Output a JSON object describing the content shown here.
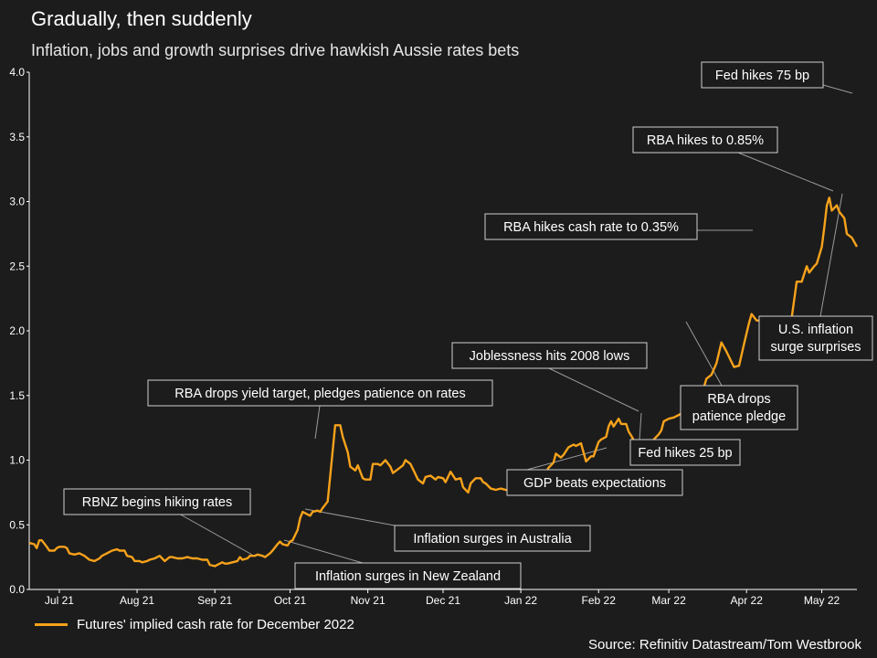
{
  "header": {
    "title": "Gradually, then suddenly",
    "subtitle": "Inflation, jobs and growth surprises drive hawkish Aussie rates bets"
  },
  "legend": {
    "label": "Futures' implied cash rate for December 2022"
  },
  "source": "Source: Refinitiv Datastream/Tom Westbrook",
  "colors": {
    "series": "#f7a21b",
    "background": "#1c1c1c",
    "axis": "#ffffff",
    "annotation_line": "#9a9a9a"
  },
  "chart_data": {
    "type": "line",
    "title": "Gradually, then suddenly",
    "subtitle": "Inflation, jobs and growth surprises drive hawkish Aussie rates bets",
    "ylim": [
      0,
      4.0
    ],
    "yticks": [
      "0.0",
      "0.5",
      "1.0",
      "1.5",
      "2.0",
      "2.5",
      "3.0",
      "3.5",
      "4.0"
    ],
    "xlim": [
      0,
      330
    ],
    "x_unit": "days from 2021-06-21",
    "xticks": [
      {
        "label": "Jul 21",
        "x": 12
      },
      {
        "label": "Aug 21",
        "x": 43
      },
      {
        "label": "Sep 21",
        "x": 74
      },
      {
        "label": "Oct 21",
        "x": 104
      },
      {
        "label": "Nov 21",
        "x": 135
      },
      {
        "label": "Dec 21",
        "x": 165
      },
      {
        "label": "Jan 22",
        "x": 196
      },
      {
        "label": "Feb 22",
        "x": 227
      },
      {
        "label": "Mar 22",
        "x": 255
      },
      {
        "label": "Apr 22",
        "x": 286
      },
      {
        "label": "May 22",
        "x": 316
      }
    ],
    "series": [
      {
        "name": "Futures' implied cash rate for December 2022",
        "points": [
          [
            0,
            0.36
          ],
          [
            2,
            0.35
          ],
          [
            3,
            0.32
          ],
          [
            4,
            0.38
          ],
          [
            5,
            0.38
          ],
          [
            7,
            0.33
          ],
          [
            8,
            0.3
          ],
          [
            10,
            0.3
          ],
          [
            11,
            0.32
          ],
          [
            12,
            0.33
          ],
          [
            14,
            0.33
          ],
          [
            15,
            0.32
          ],
          [
            16,
            0.28
          ],
          [
            18,
            0.27
          ],
          [
            20,
            0.28
          ],
          [
            21,
            0.27
          ],
          [
            22,
            0.26
          ],
          [
            24,
            0.23
          ],
          [
            26,
            0.22
          ],
          [
            28,
            0.24
          ],
          [
            29,
            0.26
          ],
          [
            30,
            0.27
          ],
          [
            32,
            0.29
          ],
          [
            33,
            0.3
          ],
          [
            35,
            0.31
          ],
          [
            36,
            0.3
          ],
          [
            38,
            0.3
          ],
          [
            39,
            0.26
          ],
          [
            41,
            0.25
          ],
          [
            42,
            0.22
          ],
          [
            44,
            0.22
          ],
          [
            45,
            0.21
          ],
          [
            47,
            0.22
          ],
          [
            48,
            0.23
          ],
          [
            50,
            0.24
          ],
          [
            52,
            0.26
          ],
          [
            53,
            0.24
          ],
          [
            54,
            0.22
          ],
          [
            56,
            0.25
          ],
          [
            57,
            0.25
          ],
          [
            59,
            0.24
          ],
          [
            61,
            0.24
          ],
          [
            63,
            0.25
          ],
          [
            65,
            0.24
          ],
          [
            67,
            0.24
          ],
          [
            69,
            0.23
          ],
          [
            71,
            0.23
          ],
          [
            72,
            0.19
          ],
          [
            74,
            0.18
          ],
          [
            75,
            0.19
          ],
          [
            77,
            0.21
          ],
          [
            78,
            0.2
          ],
          [
            79,
            0.2
          ],
          [
            81,
            0.21
          ],
          [
            83,
            0.22
          ],
          [
            84,
            0.25
          ],
          [
            85,
            0.23
          ],
          [
            87,
            0.24
          ],
          [
            88,
            0.26
          ],
          [
            90,
            0.26
          ],
          [
            91,
            0.27
          ],
          [
            93,
            0.26
          ],
          [
            94,
            0.25
          ],
          [
            96,
            0.28
          ],
          [
            97,
            0.3
          ],
          [
            99,
            0.35
          ],
          [
            100,
            0.37
          ],
          [
            101,
            0.35
          ],
          [
            103,
            0.34
          ],
          [
            104,
            0.37
          ],
          [
            105,
            0.38
          ],
          [
            107,
            0.46
          ],
          [
            108,
            0.55
          ],
          [
            109,
            0.6
          ],
          [
            111,
            0.58
          ],
          [
            112,
            0.57
          ],
          [
            113,
            0.6
          ],
          [
            115,
            0.61
          ],
          [
            116,
            0.6
          ],
          [
            117,
            0.63
          ],
          [
            119,
            0.68
          ],
          [
            120,
            0.88
          ],
          [
            122,
            1.27
          ],
          [
            124,
            1.27
          ],
          [
            125,
            1.18
          ],
          [
            127,
            1.06
          ],
          [
            128,
            0.95
          ],
          [
            130,
            0.92
          ],
          [
            131,
            0.96
          ],
          [
            133,
            0.86
          ],
          [
            134,
            0.85
          ],
          [
            136,
            0.85
          ],
          [
            137,
            0.97
          ],
          [
            139,
            0.97
          ],
          [
            140,
            0.96
          ],
          [
            142,
            1.0
          ],
          [
            144,
            0.95
          ],
          [
            145,
            0.9
          ],
          [
            147,
            0.93
          ],
          [
            149,
            0.96
          ],
          [
            150,
            1.0
          ],
          [
            152,
            0.97
          ],
          [
            153,
            0.93
          ],
          [
            155,
            0.85
          ],
          [
            157,
            0.82
          ],
          [
            158,
            0.87
          ],
          [
            160,
            0.88
          ],
          [
            162,
            0.85
          ],
          [
            163,
            0.87
          ],
          [
            165,
            0.86
          ],
          [
            166,
            0.83
          ],
          [
            168,
            0.91
          ],
          [
            170,
            0.85
          ],
          [
            172,
            0.86
          ],
          [
            173,
            0.79
          ],
          [
            175,
            0.75
          ],
          [
            176,
            0.82
          ],
          [
            178,
            0.86
          ],
          [
            180,
            0.86
          ],
          [
            181,
            0.83
          ],
          [
            182,
            0.82
          ],
          [
            184,
            0.78
          ],
          [
            186,
            0.77
          ],
          [
            188,
            0.78
          ],
          [
            190,
            0.77
          ],
          [
            191,
            0.76
          ],
          [
            193,
            0.81
          ],
          [
            195,
            0.79
          ],
          [
            197,
            0.8
          ],
          [
            198,
            0.8
          ],
          [
            200,
            0.82
          ],
          [
            201,
            0.81
          ],
          [
            203,
            0.86
          ],
          [
            205,
            0.86
          ],
          [
            207,
            0.94
          ],
          [
            209,
            0.98
          ],
          [
            210,
            1.05
          ],
          [
            212,
            1.02
          ],
          [
            213,
            1.04
          ],
          [
            215,
            1.1
          ],
          [
            217,
            1.12
          ],
          [
            218,
            1.11
          ],
          [
            220,
            1.13
          ],
          [
            222,
            0.99
          ],
          [
            224,
            1.03
          ],
          [
            225,
            1.03
          ],
          [
            227,
            1.14
          ],
          [
            228,
            1.16
          ],
          [
            230,
            1.18
          ],
          [
            231,
            1.26
          ],
          [
            232,
            1.3
          ],
          [
            233,
            1.26
          ],
          [
            235,
            1.32
          ],
          [
            236,
            1.28
          ],
          [
            238,
            1.28
          ],
          [
            239,
            1.22
          ],
          [
            240,
            1.19
          ],
          [
            242,
            1.12
          ],
          [
            243,
            1.07
          ],
          [
            245,
            1.03
          ],
          [
            246,
            1.0
          ],
          [
            248,
            1.07
          ],
          [
            249,
            1.16
          ],
          [
            251,
            1.2
          ],
          [
            252,
            1.23
          ],
          [
            253,
            1.3
          ],
          [
            255,
            1.32
          ],
          [
            257,
            1.33
          ],
          [
            259,
            1.35
          ],
          [
            260,
            1.36
          ],
          [
            262,
            1.32
          ],
          [
            263,
            1.3
          ],
          [
            265,
            1.37
          ],
          [
            266,
            1.4
          ],
          [
            268,
            1.5
          ],
          [
            270,
            1.63
          ],
          [
            272,
            1.66
          ],
          [
            274,
            1.75
          ],
          [
            276,
            1.91
          ],
          [
            278,
            1.84
          ],
          [
            280,
            1.76
          ],
          [
            281,
            1.72
          ],
          [
            283,
            1.73
          ],
          [
            285,
            1.9
          ],
          [
            287,
            2.06
          ],
          [
            288,
            2.13
          ],
          [
            290,
            2.08
          ],
          [
            291,
            2.08
          ],
          [
            293,
            2.07
          ],
          [
            295,
            2.05
          ],
          [
            296,
            2.01
          ],
          [
            298,
            1.95
          ],
          [
            300,
            1.95
          ],
          [
            302,
            2.01
          ],
          [
            304,
            2.1
          ],
          [
            306,
            2.38
          ],
          [
            308,
            2.38
          ],
          [
            310,
            2.5
          ],
          [
            311,
            2.45
          ],
          [
            313,
            2.5
          ],
          [
            314,
            2.52
          ],
          [
            316,
            2.65
          ],
          [
            317,
            2.8
          ],
          [
            318,
            2.97
          ],
          [
            319,
            3.03
          ],
          [
            320,
            2.93
          ],
          [
            322,
            2.97
          ],
          [
            323,
            2.92
          ],
          [
            325,
            2.87
          ],
          [
            326,
            2.75
          ],
          [
            328,
            2.72
          ],
          [
            330,
            2.65
          ]
        ]
      }
    ],
    "annotations": [
      "RBNZ begins hiking rates",
      "RBA drops yield target, pledges patience on rates",
      "Inflation surges in Australia",
      "Inflation surges in New Zealand",
      "Joblessness hits 2008 lows",
      "GDP beats expectations",
      "Fed hikes 25 bp",
      "RBA drops patience pledge",
      "RBA hikes cash rate to 0.35%",
      "RBA hikes to 0.85%",
      "Fed hikes 75 bp",
      "U.S. inflation surge surprises"
    ]
  }
}
